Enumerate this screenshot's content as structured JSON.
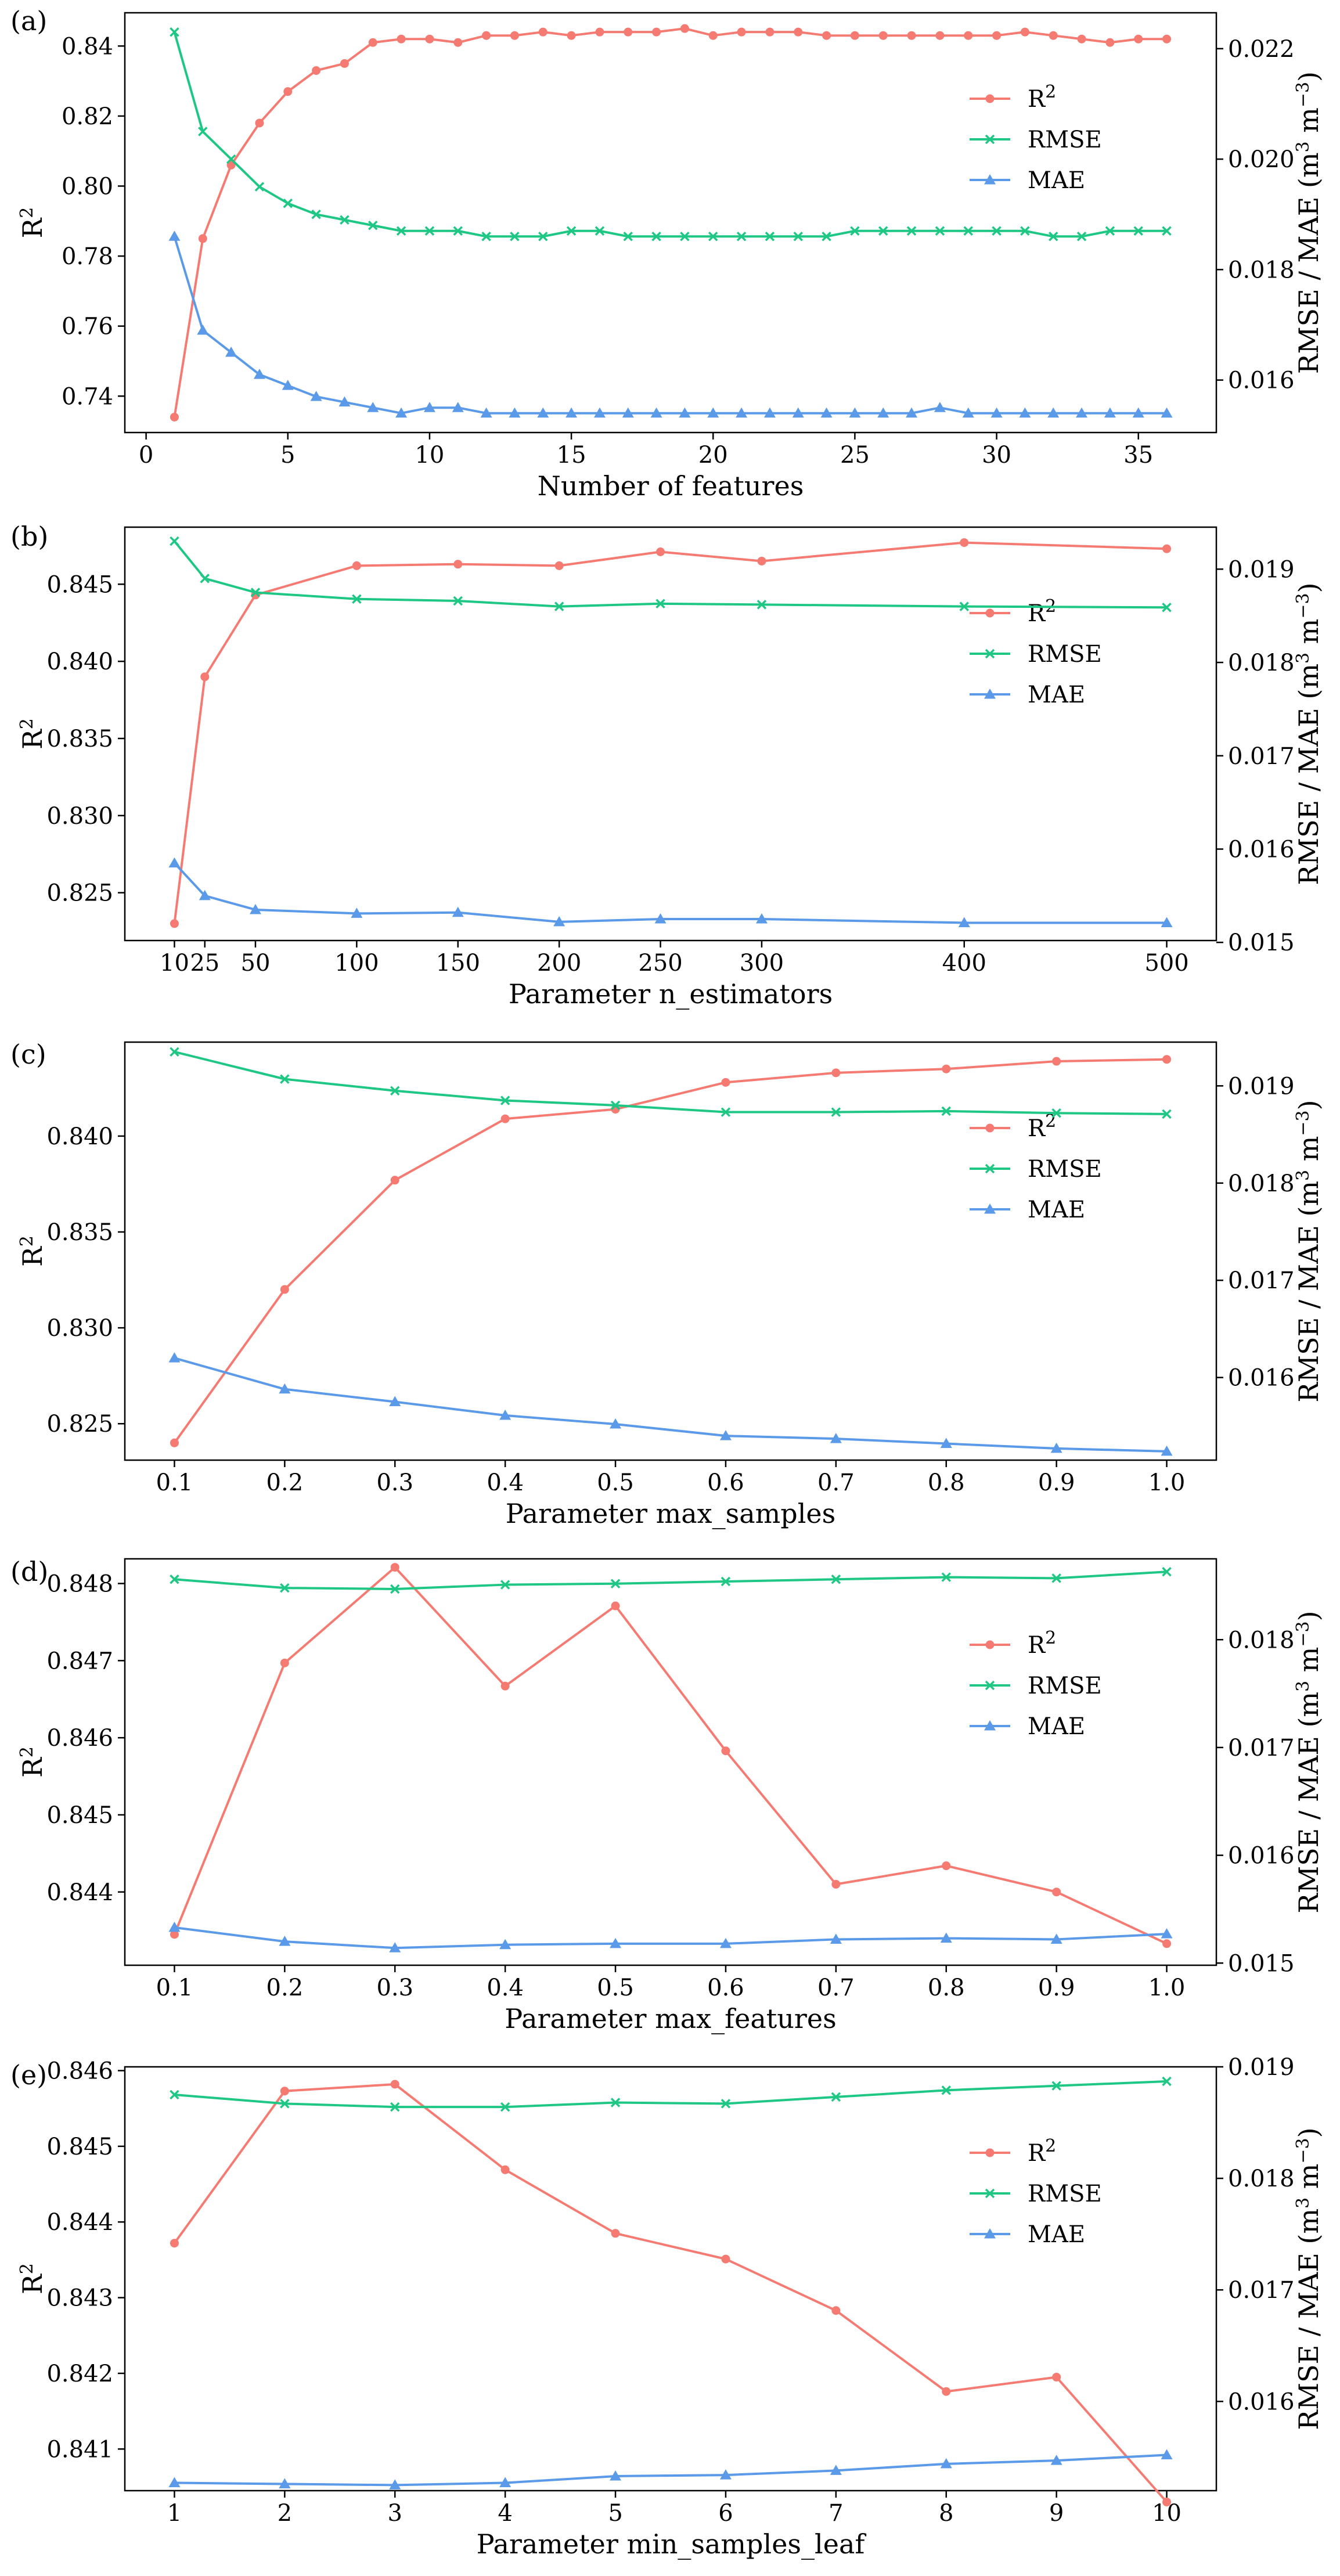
{
  "colors": {
    "r2": "#f47a72",
    "rmse": "#1fc785",
    "mae": "#5b9ae8"
  },
  "chart_data": [
    {
      "type": "line",
      "panel_label": "(a)",
      "xlabel": "Number of features",
      "ylabel_left": "R",
      "ylabel_left_sup": "2",
      "ylabel_right": "RMSE / MAE (m",
      "ylabel_right_sup1": "3",
      "ylabel_right_mid": " m",
      "ylabel_right_sup2": "−3",
      "ylabel_right_end": ")",
      "x": [
        1,
        2,
        3,
        4,
        5,
        6,
        7,
        8,
        9,
        10,
        11,
        12,
        13,
        14,
        15,
        16,
        17,
        18,
        19,
        20,
        21,
        22,
        23,
        24,
        25,
        26,
        27,
        28,
        29,
        30,
        31,
        32,
        33,
        34,
        35,
        36
      ],
      "xlim": [
        -0.75,
        37.75
      ],
      "xticks": [
        0,
        5,
        10,
        15,
        20,
        25,
        30,
        35
      ],
      "xtick_labels": [
        "0",
        "5",
        "10",
        "15",
        "20",
        "25",
        "30",
        "35"
      ],
      "ylim_left": [
        0.7296,
        0.8495
      ],
      "yticks_left": [
        0.74,
        0.76,
        0.78,
        0.8,
        0.82,
        0.84
      ],
      "ytick_labels_left": [
        "0.74",
        "0.76",
        "0.78",
        "0.80",
        "0.82",
        "0.84"
      ],
      "ylim_right": [
        0.01505,
        0.02265
      ],
      "yticks_right": [
        0.016,
        0.018,
        0.02,
        0.022
      ],
      "ytick_labels_right": [
        "0.016",
        "0.018",
        "0.020",
        "0.022"
      ],
      "series": [
        {
          "name": "R",
          "sup": "2",
          "color_key": "r2",
          "axis": "left",
          "marker": "circle",
          "values": [
            0.734,
            0.785,
            0.806,
            0.818,
            0.827,
            0.833,
            0.835,
            0.841,
            0.842,
            0.842,
            0.841,
            0.843,
            0.843,
            0.844,
            0.843,
            0.844,
            0.844,
            0.844,
            0.845,
            0.843,
            0.844,
            0.844,
            0.844,
            0.843,
            0.843,
            0.843,
            0.843,
            0.843,
            0.843,
            0.843,
            0.844,
            0.843,
            0.842,
            0.841,
            0.842,
            0.842
          ]
        },
        {
          "name": "RMSE",
          "sup": "",
          "color_key": "rmse",
          "axis": "right",
          "marker": "x",
          "values": [
            0.0223,
            0.0205,
            0.02,
            0.0195,
            0.0192,
            0.019,
            0.0189,
            0.0188,
            0.0187,
            0.0187,
            0.0187,
            0.0186,
            0.0186,
            0.0186,
            0.0187,
            0.0187,
            0.0186,
            0.0186,
            0.0186,
            0.0186,
            0.0186,
            0.0186,
            0.0186,
            0.0186,
            0.0187,
            0.0187,
            0.0187,
            0.0187,
            0.0187,
            0.0187,
            0.0187,
            0.0186,
            0.0186,
            0.0187,
            0.0187,
            0.0187
          ]
        },
        {
          "name": "MAE",
          "sup": "",
          "color_key": "mae",
          "axis": "right",
          "marker": "triangle",
          "values": [
            0.0186,
            0.0169,
            0.0165,
            0.0161,
            0.0159,
            0.0157,
            0.0156,
            0.0155,
            0.0154,
            0.0155,
            0.0155,
            0.0154,
            0.0154,
            0.0154,
            0.0154,
            0.0154,
            0.0154,
            0.0154,
            0.0154,
            0.0154,
            0.0154,
            0.0154,
            0.0154,
            0.0154,
            0.0154,
            0.0154,
            0.0154,
            0.0155,
            0.0154,
            0.0154,
            0.0154,
            0.0154,
            0.0154,
            0.0154,
            0.0154,
            0.0154
          ]
        }
      ],
      "legend_position": "right"
    },
    {
      "type": "line",
      "panel_label": "(b)",
      "xlabel": "Parameter n_estimators",
      "ylabel_left": "R",
      "ylabel_left_sup": "2",
      "ylabel_right": "RMSE / MAE (m",
      "ylabel_right_sup1": "3",
      "ylabel_right_mid": " m",
      "ylabel_right_sup2": "−3",
      "ylabel_right_end": ")",
      "x": [
        10,
        25,
        50,
        100,
        150,
        200,
        250,
        300,
        400,
        500
      ],
      "xlim": [
        -14.5,
        524.5
      ],
      "xticks": [
        10,
        25,
        50,
        100,
        150,
        200,
        250,
        300,
        400,
        500
      ],
      "xtick_labels": [
        "10",
        "25",
        "50",
        "100",
        "150",
        "200",
        "250",
        "300",
        "400",
        "500"
      ],
      "ylim_left": [
        0.8219,
        0.8487
      ],
      "yticks_left": [
        0.825,
        0.83,
        0.835,
        0.84,
        0.845
      ],
      "ytick_labels_left": [
        "0.825",
        "0.830",
        "0.835",
        "0.840",
        "0.845"
      ],
      "ylim_right": [
        0.01502,
        0.01945
      ],
      "yticks_right": [
        0.015,
        0.016,
        0.017,
        0.018,
        0.019
      ],
      "ytick_labels_right": [
        "0.015",
        "0.016",
        "0.017",
        "0.018",
        "0.019"
      ],
      "series": [
        {
          "name": "R",
          "sup": "2",
          "color_key": "r2",
          "axis": "left",
          "marker": "circle",
          "values": [
            0.823,
            0.839,
            0.8443,
            0.8462,
            0.8463,
            0.8462,
            0.8471,
            0.8465,
            0.8477,
            0.8473
          ]
        },
        {
          "name": "RMSE",
          "sup": "",
          "color_key": "rmse",
          "axis": "right",
          "marker": "x",
          "values": [
            0.0193,
            0.0189,
            0.01875,
            0.01868,
            0.01866,
            0.0186,
            0.01863,
            0.01862,
            0.0186,
            0.01859
          ]
        },
        {
          "name": "MAE",
          "sup": "",
          "color_key": "mae",
          "axis": "right",
          "marker": "triangle",
          "values": [
            0.01585,
            0.0155,
            0.01535,
            0.01531,
            0.01532,
            0.01522,
            0.01525,
            0.01525,
            0.01521,
            0.01521
          ]
        }
      ],
      "legend_position": "right"
    },
    {
      "type": "line",
      "panel_label": "(c)",
      "xlabel": "Parameter max_samples",
      "ylabel_left": "R",
      "ylabel_left_sup": "2",
      "ylabel_right": "RMSE / MAE (m",
      "ylabel_right_sup1": "3",
      "ylabel_right_mid": " m",
      "ylabel_right_sup2": "−3",
      "ylabel_right_end": ")",
      "x": [
        0.1,
        0.2,
        0.3,
        0.4,
        0.5,
        0.6,
        0.7,
        0.8,
        0.9,
        1.0
      ],
      "xlim": [
        0.055,
        1.045
      ],
      "xticks": [
        0.1,
        0.2,
        0.3,
        0.4,
        0.5,
        0.6,
        0.7,
        0.8,
        0.9,
        1.0
      ],
      "xtick_labels": [
        "0.1",
        "0.2",
        "0.3",
        "0.4",
        "0.5",
        "0.6",
        "0.7",
        "0.8",
        "0.9",
        "1.0"
      ],
      "ylim_left": [
        0.8231,
        0.8449
      ],
      "yticks_left": [
        0.825,
        0.83,
        0.835,
        0.84
      ],
      "ytick_labels_left": [
        "0.825",
        "0.830",
        "0.835",
        "0.840"
      ],
      "ylim_right": [
        0.01515,
        0.01945
      ],
      "yticks_right": [
        0.016,
        0.017,
        0.018,
        0.019
      ],
      "ytick_labels_right": [
        "0.016",
        "0.017",
        "0.018",
        "0.019"
      ],
      "series": [
        {
          "name": "R",
          "sup": "2",
          "color_key": "r2",
          "axis": "left",
          "marker": "circle",
          "values": [
            0.824,
            0.832,
            0.8377,
            0.8409,
            0.8414,
            0.8428,
            0.8433,
            0.8435,
            0.8439,
            0.844
          ]
        },
        {
          "name": "RMSE",
          "sup": "",
          "color_key": "rmse",
          "axis": "right",
          "marker": "x",
          "values": [
            0.01935,
            0.01907,
            0.01895,
            0.01885,
            0.0188,
            0.01873,
            0.01873,
            0.01874,
            0.01872,
            0.01871
          ]
        },
        {
          "name": "MAE",
          "sup": "",
          "color_key": "mae",
          "axis": "right",
          "marker": "triangle",
          "values": [
            0.0162,
            0.01588,
            0.01575,
            0.01561,
            0.01552,
            0.0154,
            0.01537,
            0.01532,
            0.01527,
            0.01524
          ]
        }
      ],
      "legend_position": "right"
    },
    {
      "type": "line",
      "panel_label": "(d)",
      "xlabel": "Parameter max_features",
      "ylabel_left": "R",
      "ylabel_left_sup": "2",
      "ylabel_right": "RMSE / MAE (m",
      "ylabel_right_sup1": "3",
      "ylabel_right_mid": " m",
      "ylabel_right_sup2": "−3",
      "ylabel_right_end": ")",
      "x": [
        0.1,
        0.2,
        0.3,
        0.4,
        0.5,
        0.6,
        0.7,
        0.8,
        0.9,
        1.0
      ],
      "xlim": [
        0.055,
        1.045
      ],
      "xticks": [
        0.1,
        0.2,
        0.3,
        0.4,
        0.5,
        0.6,
        0.7,
        0.8,
        0.9,
        1.0
      ],
      "xtick_labels": [
        "0.1",
        "0.2",
        "0.3",
        "0.4",
        "0.5",
        "0.6",
        "0.7",
        "0.8",
        "0.9",
        "1.0"
      ],
      "ylim_left": [
        0.84305,
        0.84832
      ],
      "yticks_left": [
        0.844,
        0.845,
        0.846,
        0.847,
        0.848
      ],
      "ytick_labels_left": [
        "0.844",
        "0.845",
        "0.846",
        "0.847",
        "0.848"
      ],
      "ylim_right": [
        0.01498,
        0.01875
      ],
      "yticks_right": [
        0.015,
        0.016,
        0.017,
        0.018
      ],
      "ytick_labels_right": [
        "0.015",
        "0.016",
        "0.017",
        "0.018"
      ],
      "series": [
        {
          "name": "R",
          "sup": "2",
          "color_key": "r2",
          "axis": "left",
          "marker": "circle",
          "values": [
            0.84345,
            0.84697,
            0.84821,
            0.84667,
            0.84771,
            0.84583,
            0.8441,
            0.84434,
            0.844,
            0.84333
          ]
        },
        {
          "name": "RMSE",
          "sup": "",
          "color_key": "rmse",
          "axis": "right",
          "marker": "x",
          "values": [
            0.01856,
            0.01848,
            0.01847,
            0.01851,
            0.01852,
            0.01854,
            0.01856,
            0.01858,
            0.01857,
            0.01863
          ]
        },
        {
          "name": "MAE",
          "sup": "",
          "color_key": "mae",
          "axis": "right",
          "marker": "triangle",
          "values": [
            0.01533,
            0.0152,
            0.01514,
            0.01517,
            0.01518,
            0.01518,
            0.01522,
            0.01523,
            0.01522,
            0.01527
          ]
        }
      ],
      "legend_position": "right"
    },
    {
      "type": "line",
      "panel_label": "(e)",
      "xlabel": "Parameter min_samples_leaf",
      "ylabel_left": "R",
      "ylabel_left_sup": "2",
      "ylabel_right": "RMSE / MAE (m",
      "ylabel_right_sup1": "3",
      "ylabel_right_mid": " m",
      "ylabel_right_sup2": "−3",
      "ylabel_right_end": ")",
      "x": [
        1,
        2,
        3,
        4,
        5,
        6,
        7,
        8,
        9,
        10
      ],
      "xlim": [
        0.55,
        10.45
      ],
      "xticks": [
        1,
        2,
        3,
        4,
        5,
        6,
        7,
        8,
        9,
        10
      ],
      "xtick_labels": [
        "1",
        "2",
        "3",
        "4",
        "5",
        "6",
        "7",
        "8",
        "9",
        "10"
      ],
      "ylim_left": [
        0.84045,
        0.84605
      ],
      "yticks_left": [
        0.841,
        0.842,
        0.843,
        0.844,
        0.845,
        0.846
      ],
      "ytick_labels_left": [
        "0.841",
        "0.842",
        "0.843",
        "0.844",
        "0.845",
        "0.846"
      ],
      "ylim_right": [
        0.0152,
        0.019
      ],
      "yticks_right": [
        0.016,
        0.017,
        0.018,
        0.019
      ],
      "ytick_labels_right": [
        "0.016",
        "0.017",
        "0.018",
        "0.019"
      ],
      "series": [
        {
          "name": "R",
          "sup": "2",
          "color_key": "r2",
          "axis": "left",
          "marker": "circle",
          "values": [
            0.84372,
            0.84573,
            0.84582,
            0.84469,
            0.84385,
            0.84351,
            0.84283,
            0.84176,
            0.84195,
            0.8403
          ]
        },
        {
          "name": "RMSE",
          "sup": "",
          "color_key": "rmse",
          "axis": "right",
          "marker": "x",
          "values": [
            0.01875,
            0.01867,
            0.01864,
            0.01864,
            0.01868,
            0.01867,
            0.01873,
            0.01879,
            0.01883,
            0.01887
          ]
        },
        {
          "name": "MAE",
          "sup": "",
          "color_key": "mae",
          "axis": "right",
          "marker": "triangle",
          "values": [
            0.01527,
            0.01526,
            0.01525,
            0.01527,
            0.01533,
            0.01534,
            0.01538,
            0.01544,
            0.01547,
            0.01552
          ]
        }
      ],
      "legend_position": "right"
    }
  ]
}
